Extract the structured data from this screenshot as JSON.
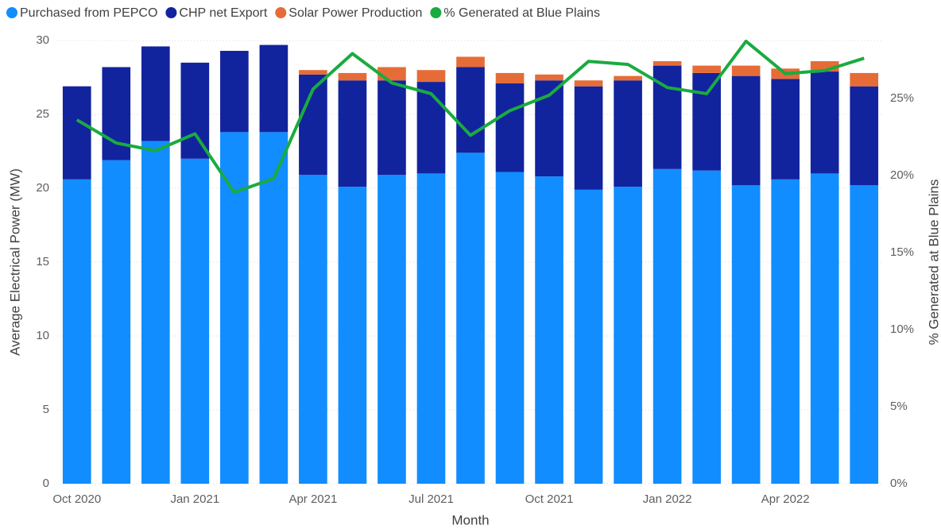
{
  "chart_data": {
    "type": "bar-line",
    "x_label": "Month",
    "y_label": "Average Electrical Power (MW)",
    "y2_label": "% Generated at Blue Plains",
    "categories": [
      "Oct 2020",
      null,
      null,
      "Jan 2021",
      null,
      null,
      "Apr 2021",
      null,
      null,
      "Jul 2021",
      null,
      null,
      "Oct 2021",
      null,
      null,
      "Jan 2022",
      null,
      null,
      "Apr 2022",
      null,
      null
    ],
    "series": [
      {
        "name": "Purchased from PEPCO",
        "color": "#118dff",
        "type": "bar",
        "values": [
          20.6,
          21.9,
          23.2,
          22.0,
          23.8,
          23.8,
          20.9,
          20.1,
          20.9,
          21.0,
          22.4,
          21.1,
          20.8,
          19.9,
          20.1,
          21.3,
          21.2,
          20.2,
          20.6,
          21.0,
          20.2
        ]
      },
      {
        "name": "CHP net Export",
        "color": "#12239e",
        "type": "bar",
        "values": [
          6.3,
          6.3,
          6.4,
          6.5,
          5.5,
          5.9,
          6.8,
          7.2,
          6.4,
          6.2,
          5.8,
          6.0,
          6.5,
          7.0,
          7.2,
          7.0,
          6.6,
          7.4,
          6.8,
          6.9,
          6.7
        ]
      },
      {
        "name": "Solar Power Production",
        "color": "#e66c37",
        "type": "bar",
        "values": [
          0,
          0,
          0,
          0,
          0,
          0,
          0.3,
          0.5,
          0.9,
          0.8,
          0.7,
          0.7,
          0.4,
          0.4,
          0.3,
          0.3,
          0.5,
          0.7,
          0.7,
          0.7,
          0.9
        ]
      },
      {
        "name": "% Generated at Blue Plains",
        "color": "#1aab40",
        "type": "line",
        "axis": "y2",
        "values": [
          23.6,
          22.1,
          21.6,
          22.7,
          18.9,
          19.8,
          25.6,
          27.9,
          26.0,
          25.3,
          22.6,
          24.2,
          25.2,
          27.4,
          27.2,
          25.7,
          25.3,
          28.7,
          26.6,
          26.8,
          27.6
        ]
      }
    ],
    "stacked": true,
    "ylim": [
      0,
      30
    ],
    "yticks": [
      0,
      5,
      10,
      15,
      20,
      25,
      30
    ],
    "y2lim": [
      0,
      28.75
    ],
    "y2ticks": [
      {
        "value": 0,
        "label": "0%"
      },
      {
        "value": 5,
        "label": "5%"
      },
      {
        "value": 10,
        "label": "10%"
      },
      {
        "value": 15,
        "label": "15%"
      },
      {
        "value": 20,
        "label": "20%"
      },
      {
        "value": 25,
        "label": "25%"
      }
    ],
    "grid": true,
    "legend": "top-left"
  }
}
